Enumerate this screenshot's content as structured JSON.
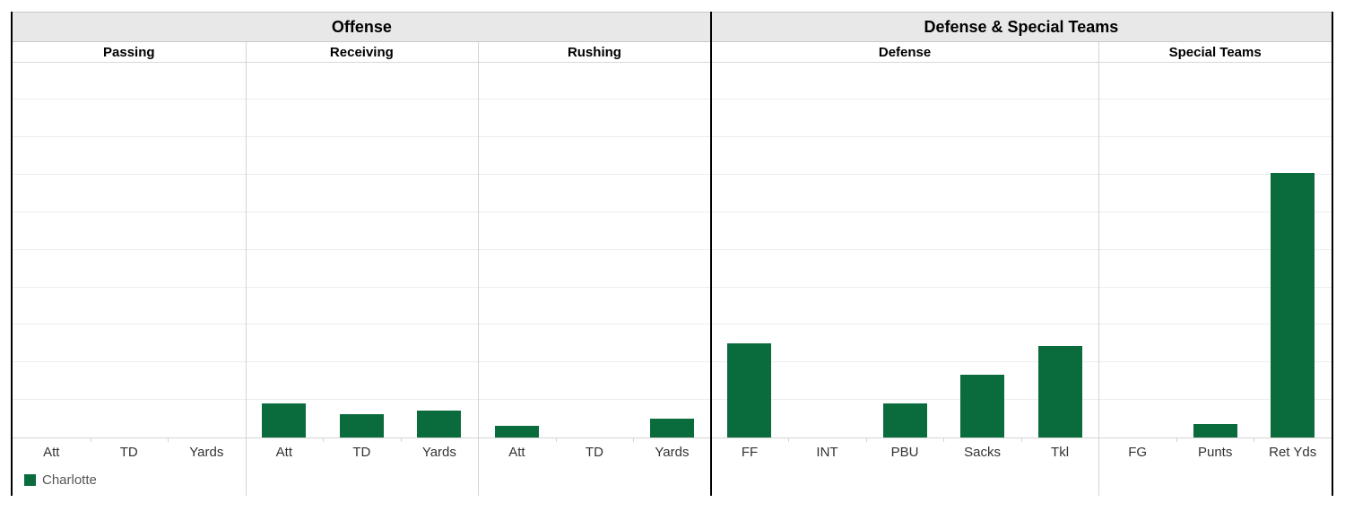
{
  "legend": {
    "label": "Charlotte"
  },
  "colors": {
    "bar": "#0a6b3c",
    "section_header_bg": "#e8e8e8",
    "gridline": "#ededed",
    "divider": "#d4d4d4",
    "frame": "#000000"
  },
  "chart_data": {
    "type": "bar",
    "title": "",
    "legend_position": "bottom-left",
    "series": [
      {
        "name": "Charlotte",
        "color": "#0a6b3c"
      }
    ],
    "y_axis": {
      "labels_visible": false,
      "min_pct": 0,
      "max_pct": 100,
      "gridline_step_pct": 10,
      "grid": true
    },
    "sections": [
      {
        "label": "Offense",
        "panels": [
          {
            "label": "Passing",
            "categories": [
              "Att",
              "TD",
              "Yards"
            ],
            "values_pct": [
              0,
              0,
              0
            ]
          },
          {
            "label": "Receiving",
            "categories": [
              "Att",
              "TD",
              "Yards"
            ],
            "values_pct": [
              9.0,
              6.3,
              7.2
            ]
          },
          {
            "label": "Rushing",
            "categories": [
              "Att",
              "TD",
              "Yards"
            ],
            "values_pct": [
              3.1,
              0,
              5.1
            ]
          }
        ]
      },
      {
        "label": "Defense & Special Teams",
        "panels": [
          {
            "label": "Defense",
            "categories": [
              "FF",
              "INT",
              "PBU",
              "Sacks",
              "Tkl"
            ],
            "values_pct": [
              25.2,
              0,
              9.1,
              16.8,
              24.3
            ]
          },
          {
            "label": "Special Teams",
            "categories": [
              "FG",
              "Punts",
              "Ret Yds"
            ],
            "values_pct": [
              0,
              3.7,
              70.6
            ]
          }
        ]
      }
    ]
  }
}
